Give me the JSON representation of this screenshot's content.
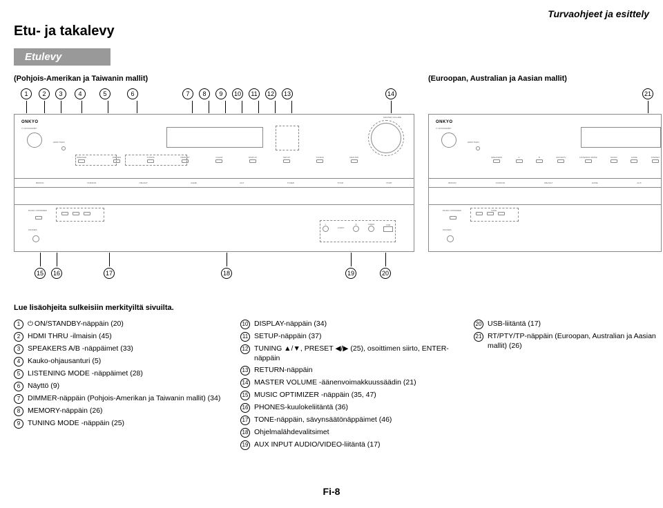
{
  "header": {
    "top_right": "Turvaohjeet ja esittely",
    "title": "Etu- ja takalevy",
    "section": "Etulevy",
    "subtitle_left": "(Pohjois-Amerikan ja Taiwanin mallit)",
    "subtitle_right": "(Euroopan, Australian ja Aasian mallit)"
  },
  "refs_top_left": [
    "1",
    "2",
    "3",
    "4",
    "5",
    "6",
    "7",
    "8",
    "9",
    "10",
    "11",
    "12",
    "13",
    "14"
  ],
  "refs_top_right": [
    "21"
  ],
  "refs_bottom_left": [
    "15",
    "16",
    "17",
    "18",
    "19",
    "20"
  ],
  "device_left": {
    "brand": "ONKYO",
    "knob_label": "MASTER VOLUME",
    "hdmi": "HDMI THRU",
    "row1": [
      "SPEAKER",
      "DIMMER",
      "TUNING",
      "MEMORY",
      "CLEAR",
      "DISPLAY",
      "SETUP",
      "TUNING",
      "RETURN"
    ],
    "row2": [
      "BD/DVD",
      "VCR/DVR",
      "CBL/SAT",
      "GAME",
      "AUX",
      "TUNER",
      "TV/CD",
      "PORT"
    ],
    "music_opt": "MUSIC OPTIMIZER",
    "phones": "PHONES",
    "aux_labels": [
      "L",
      "AUDIO",
      "R",
      "VIDEO",
      "USB"
    ]
  },
  "device_right": {
    "brand": "ONKYO",
    "hdmi": "HDMI THRU",
    "row1": [
      "SPEAKERS",
      "A",
      "B",
      "MOVIE/TV",
      "LISTENING MODE",
      "MUSIC",
      "GAME",
      "STEREO"
    ],
    "row2": [
      "BD/DVD",
      "VCR/DVR",
      "CBL/SAT",
      "GAME",
      "AUX"
    ],
    "music_opt": "MUSIC OPTIMIZER",
    "phones": "PHONES",
    "tone": "TONE"
  },
  "intro": "Lue lisäohjeita sulkeisiin merkityiltä sivuilta.",
  "col1": [
    {
      "n": "1",
      "t": "ON/STANDBY-näppäin (20)",
      "power": true
    },
    {
      "n": "2",
      "t": "HDMI THRU -ilmaisin (45)"
    },
    {
      "n": "3",
      "t": "SPEAKERS A/B -näppäimet (33)"
    },
    {
      "n": "4",
      "t": "Kauko-ohjausanturi (5)"
    },
    {
      "n": "5",
      "t": "LISTENING MODE -näppäimet (28)"
    },
    {
      "n": "6",
      "t": "Näyttö (9)"
    },
    {
      "n": "7",
      "t": "DIMMER-näppäin (Pohjois-Amerikan ja Taiwanin mallit) (34)"
    },
    {
      "n": "8",
      "t": "MEMORY-näppäin (26)"
    },
    {
      "n": "9",
      "t": "TUNING MODE -näppäin (25)"
    }
  ],
  "col2": [
    {
      "n": "10",
      "t": "DISPLAY-näppäin (34)"
    },
    {
      "n": "11",
      "t": "SETUP-näppäin (37)"
    },
    {
      "n": "12",
      "t": "TUNING ▲/▼, PRESET ◀/▶ (25), osoittimen siirto, ENTER-näppäin"
    },
    {
      "n": "13",
      "t": "RETURN-näppäin"
    },
    {
      "n": "14",
      "t": "MASTER VOLUME -äänenvoimakkuussäädin (21)"
    },
    {
      "n": "15",
      "t": "MUSIC OPTIMIZER -näppäin (35, 47)"
    },
    {
      "n": "16",
      "t": "PHONES-kuulokeliitäntä (36)"
    },
    {
      "n": "17",
      "t": "TONE-näppäin, sävynsäätönäppäimet (46)"
    },
    {
      "n": "18",
      "t": "Ohjelmalähdevalitsimet"
    },
    {
      "n": "19",
      "t": "AUX INPUT AUDIO/VIDEO-liitäntä (17)"
    }
  ],
  "col3": [
    {
      "n": "20",
      "t": "USB-liitäntä (17)"
    },
    {
      "n": "21",
      "t": "RT/PTY/TP-näppäin (Euroopan, Australian ja Aasian mallit) (26)"
    }
  ],
  "footer": "Fi-8"
}
